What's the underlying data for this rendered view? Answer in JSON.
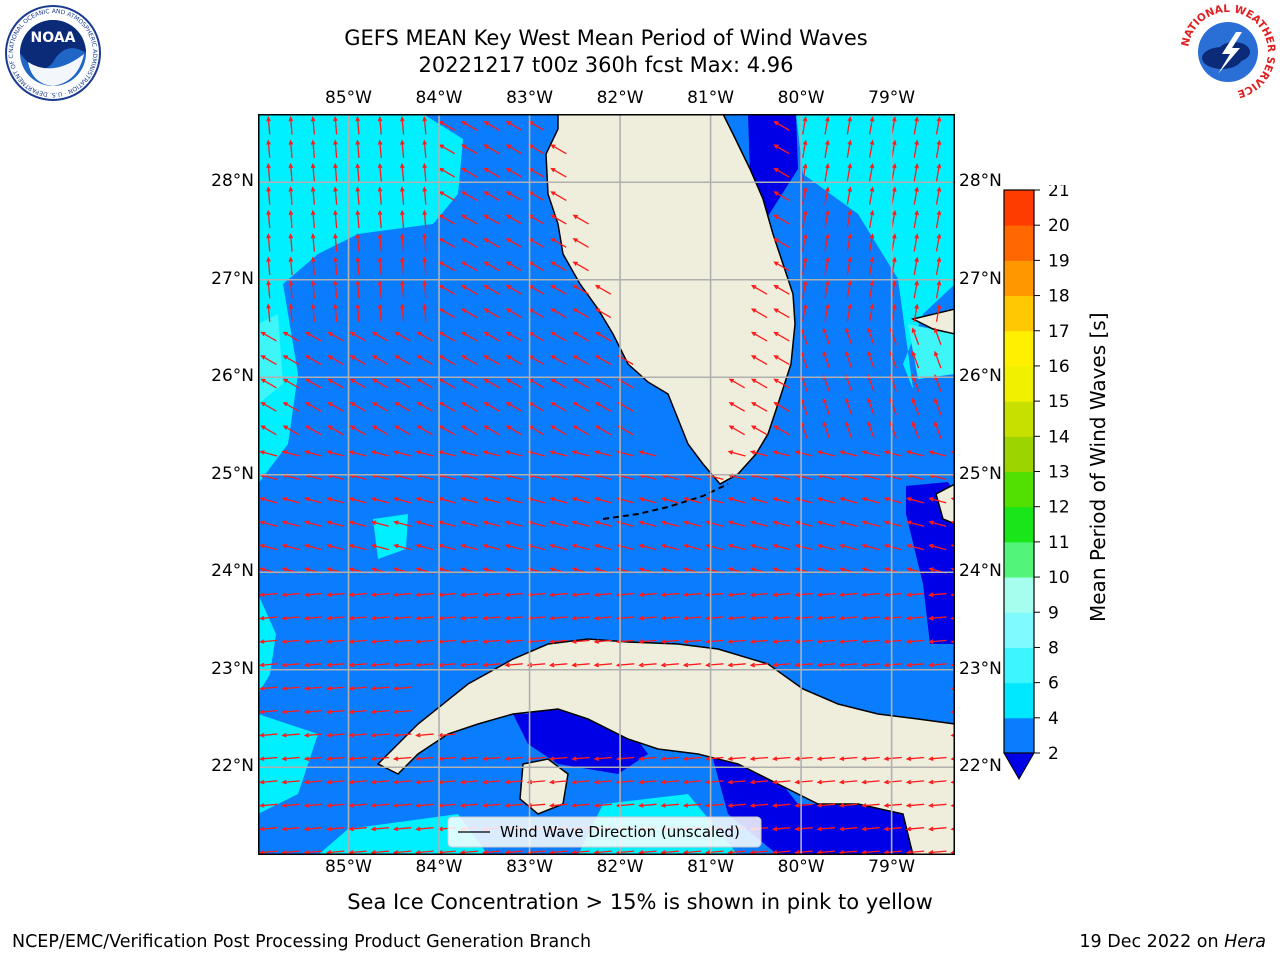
{
  "title": {
    "line1": "GEFS MEAN Key West Mean Period of Wind Waves",
    "line2": "20221217 t00z 360h fcst   Max: 4.96"
  },
  "axes": {
    "lon_labels": [
      "85°W",
      "84°W",
      "83°W",
      "82°W",
      "81°W",
      "80°W",
      "79°W"
    ],
    "lon_values": [
      -85,
      -84,
      -83,
      -82,
      -81,
      -80,
      -79
    ],
    "lat_labels": [
      "28°N",
      "27°N",
      "26°N",
      "25°N",
      "24°N",
      "23°N",
      "22°N"
    ],
    "lat_values": [
      28,
      27,
      26,
      25,
      24,
      23,
      22
    ],
    "lon_range": [
      -86,
      -78.3
    ],
    "lat_range": [
      21.1,
      28.7
    ]
  },
  "legend": {
    "label": "Wind Wave Direction (unscaled)"
  },
  "colorbar": {
    "label": "Mean Period of Wind Waves [s]",
    "ticks": [
      "21",
      "20",
      "19",
      "18",
      "17",
      "16",
      "15",
      "14",
      "13",
      "12",
      "11",
      "10",
      "9",
      "8",
      "6",
      "4",
      "2"
    ],
    "levels": [
      2,
      4,
      6,
      8,
      9,
      10,
      11,
      12,
      13,
      14,
      15,
      16,
      17,
      18,
      19,
      20,
      21
    ],
    "colors": [
      "#0a7dff",
      "#00e8ff",
      "#3cf5ff",
      "#7ffbff",
      "#a6ffee",
      "#52f57a",
      "#19e619",
      "#52e000",
      "#9cd400",
      "#c8e000",
      "#f0f000",
      "#fff000",
      "#ffc800",
      "#ff9800",
      "#ff6800",
      "#ff3c00",
      "#ff0000"
    ],
    "extend_color": "#0000e6"
  },
  "map_colors": {
    "period_2_4": "#0a7dff",
    "period_4_6": "#00f0ff",
    "period_6_8": "#3ef5f8",
    "below_2": "#0000e6",
    "land": "#efeedd",
    "arrow": "#ff1a1a"
  },
  "subtitle": "Sea Ice Concentration > 15% is shown in pink to yellow",
  "footer": {
    "left": "NCEP/EMC/Verification Post Processing Product Generation Branch",
    "right_date": "19 Dec 2022 on ",
    "right_host": "Hera"
  },
  "logos": {
    "noaa": {
      "text": "NOAA",
      "ring_text": "NATIONAL OCEANIC AND ATMOSPHERIC ADMINISTRATION · U.S. DEPARTMENT OF COMMERCE"
    },
    "nws": {
      "ring_text": "NATIONAL WEATHER SERVICE"
    }
  }
}
